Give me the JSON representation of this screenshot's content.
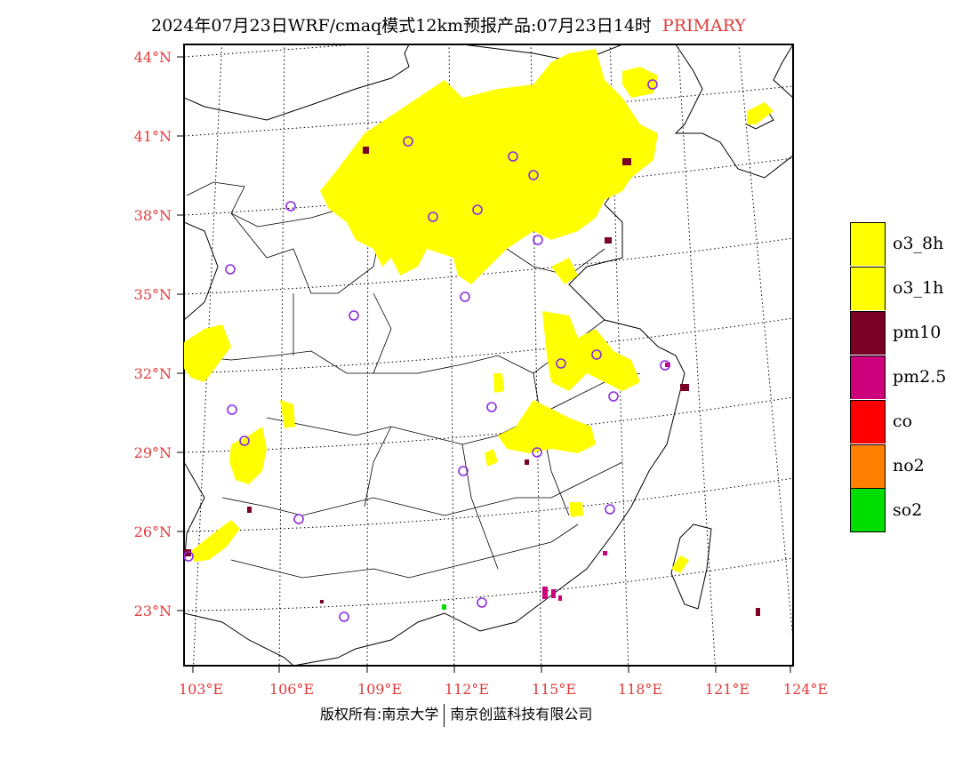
{
  "title": {
    "main": "2024年07月23日WRF/cmaq模式12km预报产品:07月23日14时",
    "tag": "PRIMARY"
  },
  "axes": {
    "latitude_labels": [
      "44°N",
      "41°N",
      "38°N",
      "35°N",
      "32°N",
      "29°N",
      "26°N",
      "23°N"
    ],
    "longitude_labels": [
      "103°E",
      "106°E",
      "109°E",
      "112°E",
      "115°E",
      "118°E",
      "121°E",
      "124°E"
    ]
  },
  "legend": [
    {
      "label": "o3_8h",
      "color": "#ffff00"
    },
    {
      "label": "o3_1h",
      "color": "#ffff00"
    },
    {
      "label": "pm10",
      "color": "#7a0026"
    },
    {
      "label": "pm2.5",
      "color": "#cc007a"
    },
    {
      "label": "co",
      "color": "#ff0000"
    },
    {
      "label": "no2",
      "color": "#ff7f00"
    },
    {
      "label": "so2",
      "color": "#00dd00"
    }
  ],
  "copyright": {
    "left": "版权所有:南京大学",
    "right": "南京创蓝科技有限公司"
  },
  "colors": {
    "label_red": "#e03a3a",
    "o3": "#ffff00",
    "pm10": "#7a0026",
    "pm25": "#cc007a",
    "station_ring": "#8a2be2"
  }
}
